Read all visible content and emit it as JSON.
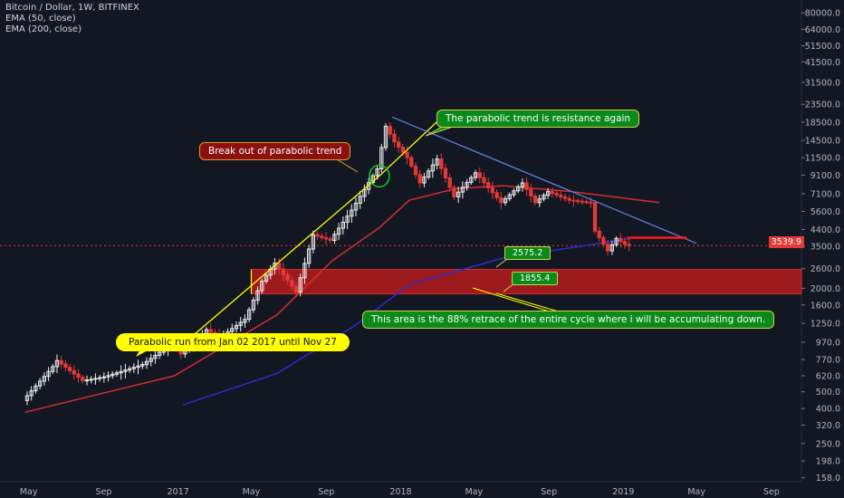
{
  "legend": {
    "symbol": "Bitcoin / Dollar, 1W, BITFINEX",
    "ema50": "EMA (50, close)",
    "ema200": "EMA (200, close)"
  },
  "annotations": {
    "parabolic_run": "Parabolic run from Jan 02 2017 until Nov 27",
    "break_out": "Break out of parabolic trend",
    "resistance": "The parabolic trend is resistance again",
    "retrace_area": "This area is the 88% retrace of the entire cycle where i will be accumulating down.",
    "level_a": "2575.2",
    "level_b": "1855.4"
  },
  "current_price": "3539.9",
  "colors": {
    "background": "#131722",
    "up_candle": "#f0f0f0",
    "down_candle": "#e53935",
    "ema50": "#d32f2f",
    "ema200": "#2c2ccf",
    "trendline": "#ffff00",
    "downtrend": "#5b7fd6",
    "zone": "#b71c1c"
  },
  "chart_data": {
    "type": "candlestick",
    "symbol": "Bitcoin / Dollar",
    "interval": "1W",
    "exchange": "BITFINEX",
    "y_scale": "log",
    "y_ticks": [
      "80000.0",
      "64000.0",
      "51500.0",
      "41500.0",
      "31500.0",
      "23500.0",
      "18500.0",
      "14500.0",
      "11500.0",
      "9100.0",
      "7100.0",
      "5600.0",
      "4400.0",
      "3500.0",
      "2600.0",
      "2000.0",
      "1600.0",
      "1250.0",
      "970.0",
      "770.0",
      "620.0",
      "500.0",
      "400.0",
      "320.0",
      "250.0",
      "198.0",
      "158.0"
    ],
    "x_ticks": [
      "May",
      "Sep",
      "2017",
      "May",
      "Sep",
      "2018",
      "May",
      "Sep",
      "2019",
      "May",
      "Sep"
    ],
    "price_path": [
      [
        "2016-04-25",
        445
      ],
      [
        "2016-06-13",
        700
      ],
      [
        "2016-06-20",
        760
      ],
      [
        "2016-08-01",
        580
      ],
      [
        "2016-09-05",
        610
      ],
      [
        "2016-11-07",
        720
      ],
      [
        "2016-12-26",
        960
      ],
      [
        "2017-01-09",
        830
      ],
      [
        "2017-02-20",
        1150
      ],
      [
        "2017-03-13",
        1030
      ],
      [
        "2017-04-24",
        1320
      ],
      [
        "2017-05-22",
        2200
      ],
      [
        "2017-06-12",
        2800
      ],
      [
        "2017-07-17",
        1900
      ],
      [
        "2017-08-14",
        4100
      ],
      [
        "2017-09-11",
        3800
      ],
      [
        "2017-10-16",
        5700
      ],
      [
        "2017-11-27",
        9900
      ],
      [
        "2017-12-11",
        17500
      ],
      [
        "2017-12-25",
        14200
      ],
      [
        "2018-01-15",
        11500
      ],
      [
        "2018-02-05",
        8200
      ],
      [
        "2018-03-05",
        11300
      ],
      [
        "2018-04-02",
        6800
      ],
      [
        "2018-05-07",
        9400
      ],
      [
        "2018-06-18",
        6300
      ],
      [
        "2018-07-23",
        8200
      ],
      [
        "2018-08-13",
        6300
      ],
      [
        "2018-09-03",
        7300
      ],
      [
        "2018-10-08",
        6500
      ],
      [
        "2018-11-12",
        6300
      ],
      [
        "2018-11-19",
        4300
      ],
      [
        "2018-12-10",
        3300
      ],
      [
        "2018-12-24",
        3900
      ],
      [
        "2019-01-07",
        3600
      ],
      [
        "2019-01-14",
        3540
      ]
    ],
    "ema50_path": [
      [
        "2016-04-25",
        380
      ],
      [
        "2016-12-26",
        620
      ],
      [
        "2017-06-12",
        1400
      ],
      [
        "2017-09-11",
        2900
      ],
      [
        "2017-11-27",
        4500
      ],
      [
        "2018-01-15",
        6500
      ],
      [
        "2018-04-02",
        7600
      ],
      [
        "2018-06-18",
        7900
      ],
      [
        "2018-10-08",
        7300
      ],
      [
        "2019-03-01",
        6300
      ]
    ],
    "ema200_path": [
      [
        "2017-01-09",
        420
      ],
      [
        "2017-06-12",
        640
      ],
      [
        "2017-10-16",
        1200
      ],
      [
        "2018-01-15",
        2100
      ],
      [
        "2018-06-18",
        3000
      ],
      [
        "2018-11-12",
        3600
      ],
      [
        "2019-01-14",
        3900
      ]
    ],
    "parabolic_trendline": [
      [
        "2017-01-02",
        900
      ],
      [
        "2017-11-27",
        9000
      ],
      [
        "2018-03-01",
        18500
      ]
    ],
    "downtrend_line": [
      [
        "2017-12-18",
        19800
      ],
      [
        "2019-05-01",
        3650
      ]
    ],
    "accumulation_zone": {
      "x_start": "2017-05-01",
      "low": 1855.4,
      "high": 2575.2
    },
    "resistance_segment": {
      "x_start": "2019-01-07",
      "x_end": "2019-04-15",
      "price": 3940
    },
    "current_price_line": 3539.9,
    "x_range": [
      "2016-03-15",
      "2019-10-20"
    ],
    "y_range": [
      150,
      95000
    ]
  }
}
